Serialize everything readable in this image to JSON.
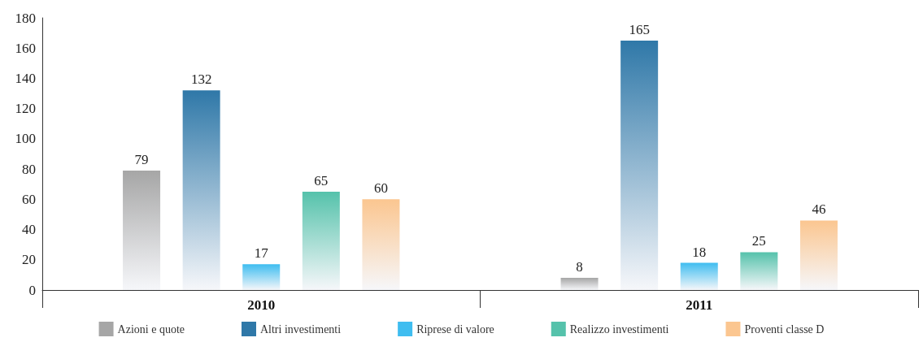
{
  "chart_data": {
    "type": "bar",
    "categories": [
      "2010",
      "2011"
    ],
    "series": [
      {
        "name": "Azioni e quote",
        "color": "#a6a6a6",
        "values": [
          79,
          8
        ]
      },
      {
        "name": "Altri investimenti",
        "color": "#2f78a8",
        "values": [
          132,
          165
        ]
      },
      {
        "name": "Riprese di valore",
        "color": "#3fbdf0",
        "values": [
          17,
          18
        ]
      },
      {
        "name": "Realizzo investimenti",
        "color": "#55c2ab",
        "values": [
          65,
          25
        ]
      },
      {
        "name": "Proventi classe D",
        "color": "#fbc690",
        "values": [
          60,
          46
        ]
      }
    ],
    "ylim": [
      0,
      180
    ],
    "yticks": [
      0,
      20,
      40,
      60,
      80,
      100,
      120,
      140,
      160,
      180
    ],
    "grid": false,
    "legend": "bottom",
    "data_labels": true
  }
}
